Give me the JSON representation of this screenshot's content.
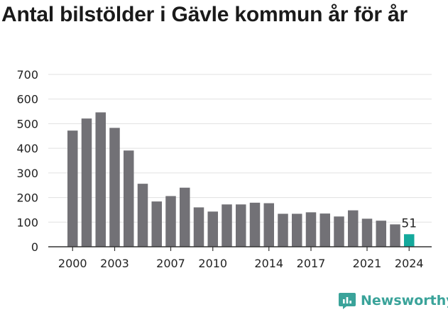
{
  "chart_data": {
    "type": "bar",
    "title": "Antal bilstölder i Gävle kommun år för år",
    "xlabel": "",
    "ylabel": "",
    "categories": [
      2000,
      2001,
      2002,
      2003,
      2004,
      2005,
      2006,
      2007,
      2008,
      2009,
      2010,
      2011,
      2012,
      2013,
      2014,
      2015,
      2016,
      2017,
      2018,
      2019,
      2020,
      2021,
      2022,
      2023,
      2024
    ],
    "values": [
      472,
      521,
      546,
      483,
      391,
      256,
      184,
      206,
      240,
      160,
      143,
      172,
      172,
      179,
      177,
      134,
      134,
      140,
      135,
      123,
      148,
      114,
      106,
      91,
      51
    ],
    "ylim": [
      0,
      700
    ],
    "yticks": [
      0,
      100,
      200,
      300,
      400,
      500,
      600,
      700
    ],
    "xticks": [
      2000,
      2003,
      2007,
      2010,
      2014,
      2017,
      2021,
      2024
    ],
    "grid": true,
    "colors": {
      "bar": "#727176",
      "highlight": "#14a99c"
    },
    "highlight_category": 2024,
    "data_labels": [
      {
        "category": 2024,
        "text": "51"
      }
    ]
  },
  "branding": {
    "name": "Newsworthy",
    "icon": "newsworthy-logo-icon",
    "color": "#3aa39a"
  }
}
